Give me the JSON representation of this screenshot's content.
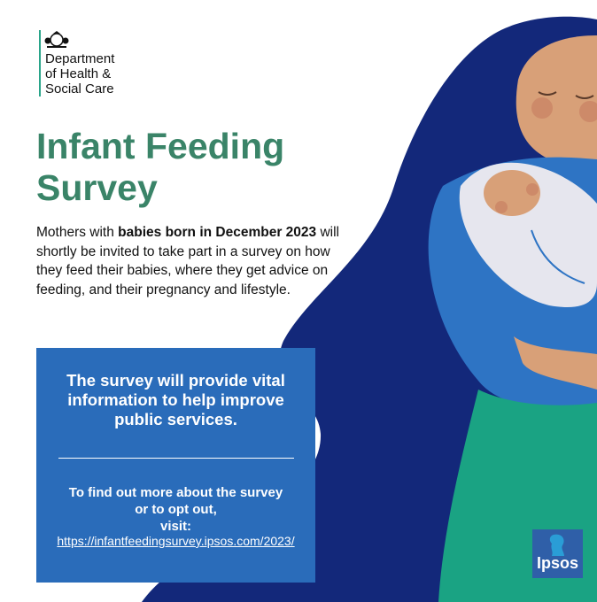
{
  "header": {
    "org_lines": [
      "Department",
      "of Health &",
      "Social Care"
    ]
  },
  "title_lines": [
    "Infant Feeding",
    "Survey"
  ],
  "intro": {
    "before": "Mothers with ",
    "bold": "babies born in December 2023",
    "after": " will shortly be invited to take part in a survey on how they feed their babies, where they get advice on feeding, and their pregnancy and lifestyle."
  },
  "box": {
    "headline": "The survey will provide vital information to help improve public services.",
    "cta_lines": [
      "To find out more about the survey",
      "or to opt out,",
      "visit:"
    ],
    "link": "https://infantfeedingsurvey.ipsos.com/2023/"
  },
  "logo": "Ipsos"
}
